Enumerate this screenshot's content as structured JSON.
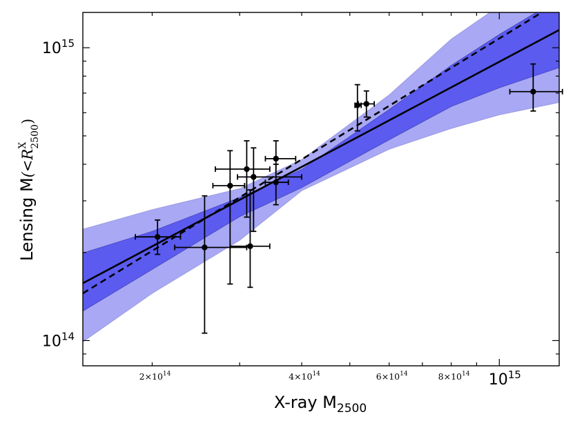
{
  "chart_data": {
    "type": "scatter",
    "xscale": "log",
    "yscale": "log",
    "xlim": [
      145000000000000.0,
      1320000000000000.0
    ],
    "ylim": [
      82000000000000.0,
      1320000000000000.0
    ],
    "xlabel": {
      "main": "X-ray M",
      "sub": "2500"
    },
    "ylabel": {
      "main": "Lensing M",
      "math_open": "(<R",
      "math_sup": "X",
      "math_sub": "2500",
      "math_close": ")"
    },
    "xticks_minor_labels": [
      {
        "value": 200000000000000.0,
        "mantissa": "2",
        "times": "×",
        "base": "10",
        "exp": "14"
      },
      {
        "value": 400000000000000.0,
        "mantissa": "4",
        "times": "×",
        "base": "10",
        "exp": "14"
      },
      {
        "value": 600000000000000.0,
        "mantissa": "6",
        "times": "×",
        "base": "10",
        "exp": "14"
      },
      {
        "value": 800000000000000.0,
        "mantissa": "8",
        "times": "×",
        "base": "10",
        "exp": "14"
      }
    ],
    "xticks_major_labels": [
      {
        "value": 1000000000000000.0,
        "base": "10",
        "exp": "15"
      }
    ],
    "yticks_major_labels": [
      {
        "value": 100000000000000.0,
        "base": "10",
        "exp": "14"
      },
      {
        "value": 1000000000000000.0,
        "base": "10",
        "exp": "15"
      }
    ],
    "fit_line": {
      "name": "best fit",
      "style": "solid",
      "x": [
        145000000000000.0,
        1320000000000000.0
      ],
      "y": [
        157000000000000.0,
        1150000000000000.0
      ]
    },
    "reference_line": {
      "name": "comparison",
      "style": "dashed",
      "x": [
        145000000000000.0,
        1200000000000000.0
      ],
      "y": [
        145000000000000.0,
        1300000000000000.0
      ]
    },
    "bands": [
      {
        "name": "outer band",
        "color": "#a8a8f4",
        "x": [
          145000000000000.0,
          200000000000000.0,
          300000000000000.0,
          400000000000000.0,
          600000000000000.0,
          800000000000000.0,
          1000000000000000.0,
          1320000000000000.0
        ],
        "upper": [
          240000000000000.0,
          280000000000000.0,
          330000000000000.0,
          415000000000000.0,
          690000000000000.0,
          1070000000000000.0,
          1390000000000000.0,
          1900000000000000.0
        ],
        "lower": [
          99000000000000.0,
          145000000000000.0,
          220000000000000.0,
          325000000000000.0,
          450000000000000.0,
          530000000000000.0,
          590000000000000.0,
          650000000000000.0
        ]
      },
      {
        "name": "inner band",
        "color": "#5b5bf0",
        "x": [
          145000000000000.0,
          200000000000000.0,
          300000000000000.0,
          400000000000000.0,
          600000000000000.0,
          800000000000000.0,
          1000000000000000.0,
          1320000000000000.0
        ],
        "upper": [
          199000000000000.0,
          236000000000000.0,
          308000000000000.0,
          384000000000000.0,
          615000000000000.0,
          870000000000000.0,
          1110000000000000.0,
          1470000000000000.0
        ],
        "lower": [
          126000000000000.0,
          175000000000000.0,
          265000000000000.0,
          333000000000000.0,
          485000000000000.0,
          630000000000000.0,
          730000000000000.0,
          855000000000000.0
        ]
      }
    ],
    "points": [
      {
        "x": 205000000000000.0,
        "y": 226000000000000.0,
        "xerr": [
          185000000000000.0,
          228000000000000.0
        ],
        "yerr": [
          197000000000000.0,
          258000000000000.0
        ]
      },
      {
        "x": 255000000000000.0,
        "y": 208000000000000.0,
        "xerr": [
          222000000000000.0,
          310000000000000.0
        ],
        "yerr": [
          106000000000000.0,
          312000000000000.0
        ]
      },
      {
        "x": 287000000000000.0,
        "y": 338000000000000.0,
        "xerr": [
          265000000000000.0,
          307000000000000.0
        ],
        "yerr": [
          156000000000000.0,
          445000000000000.0
        ]
      },
      {
        "x": 315000000000000.0,
        "y": 210000000000000.0,
        "xerr": [
          287000000000000.0,
          345000000000000.0
        ],
        "yerr": [
          152000000000000.0,
          327000000000000.0
        ]
      },
      {
        "x": 310000000000000.0,
        "y": 385000000000000.0,
        "xerr": [
          268000000000000.0,
          345000000000000.0
        ],
        "yerr": [
          264000000000000.0,
          481000000000000.0
        ]
      },
      {
        "x": 320000000000000.0,
        "y": 362000000000000.0,
        "xerr": [
          297000000000000.0,
          400000000000000.0
        ],
        "yerr": [
          236000000000000.0,
          455000000000000.0
        ]
      },
      {
        "x": 355000000000000.0,
        "y": 347000000000000.0,
        "xerr": [
          338000000000000.0,
          376000000000000.0
        ],
        "yerr": [
          291000000000000.0,
          400000000000000.0
        ]
      },
      {
        "x": 355000000000000.0,
        "y": 418000000000000.0,
        "xerr": [
          338000000000000.0,
          389000000000000.0
        ],
        "yerr": [
          347000000000000.0,
          481000000000000.0
        ]
      },
      {
        "x": 518000000000000.0,
        "y": 636000000000000.0,
        "xerr": [
          512000000000000.0,
          527000000000000.0
        ],
        "yerr": [
          520000000000000.0,
          748000000000000.0
        ]
      },
      {
        "x": 540000000000000.0,
        "y": 643000000000000.0,
        "xerr": [
          520000000000000.0,
          560000000000000.0
        ],
        "yerr": [
          580000000000000.0,
          712000000000000.0
        ]
      },
      {
        "x": 1170000000000000.0,
        "y": 708000000000000.0,
        "xerr": [
          1050000000000000.0,
          1340000000000000.0
        ],
        "yerr": [
          608000000000000.0,
          880000000000000.0
        ]
      }
    ]
  }
}
